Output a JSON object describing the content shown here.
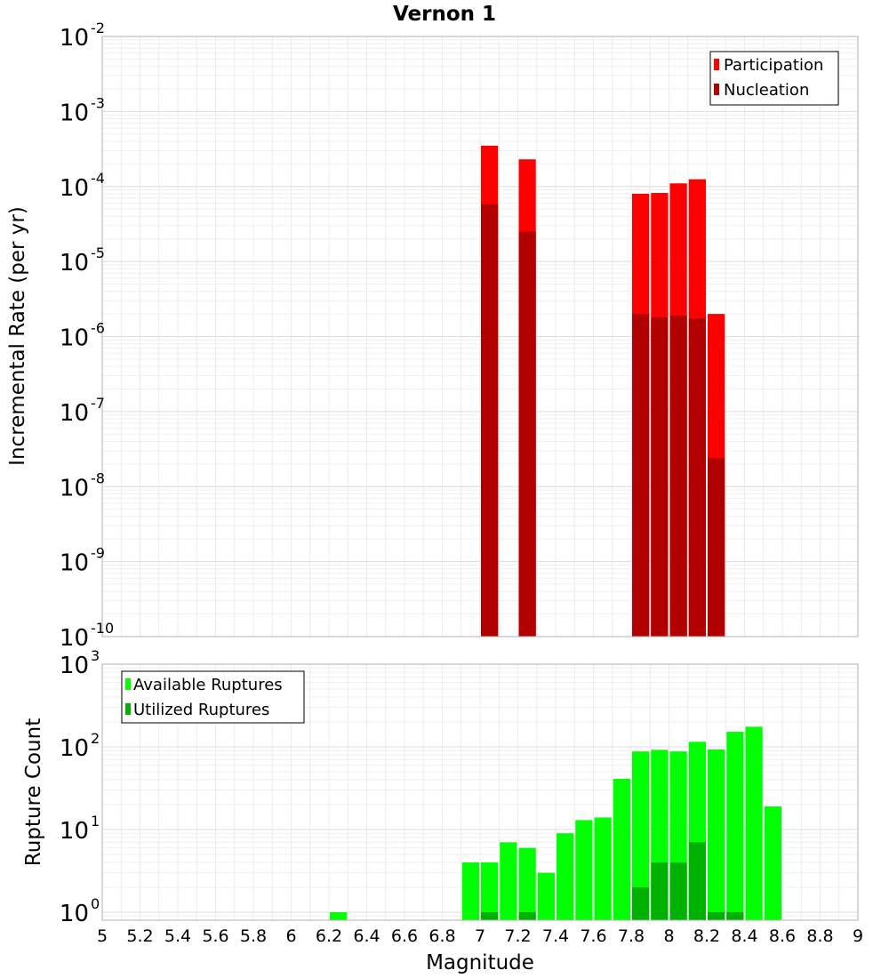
{
  "chart_data": [
    {
      "type": "bar",
      "title": "Vernon 1",
      "ylabel": "Incremental Rate (per yr)",
      "yscale": "log",
      "ylim": [
        1e-10,
        0.01
      ],
      "xlim": [
        5,
        9
      ],
      "bin_width": 0.1,
      "grid": true,
      "legend_position": "top-right",
      "x": [
        7.05,
        7.25,
        7.85,
        7.95,
        8.05,
        8.15,
        8.25
      ],
      "series": [
        {
          "name": "Participation",
          "color": "#ff0000",
          "values": [
            0.00035,
            0.00023,
            8e-05,
            8.2e-05,
            0.00011,
            0.000125,
            2e-06
          ]
        },
        {
          "name": "Nucleation",
          "color": "#b20000",
          "values": [
            5.8e-05,
            2.5e-05,
            2e-06,
            1.8e-06,
            1.9e-06,
            1.75e-06,
            2.4e-08
          ]
        }
      ]
    },
    {
      "type": "bar",
      "xlabel": "Magnitude",
      "ylabel": "Rupture Count",
      "yscale": "log",
      "ylim": [
        0.8,
        1000
      ],
      "xlim": [
        5,
        9
      ],
      "bin_width": 0.1,
      "grid": true,
      "legend_position": "top-left",
      "x": [
        6.25,
        6.95,
        7.05,
        7.15,
        7.25,
        7.35,
        7.45,
        7.55,
        7.65,
        7.75,
        7.85,
        7.95,
        8.05,
        8.15,
        8.25,
        8.35,
        8.45,
        8.55
      ],
      "series": [
        {
          "name": "Available Ruptures",
          "color": "#00ff00",
          "values": [
            1,
            4,
            4,
            7,
            6,
            3,
            9,
            13,
            14,
            41,
            88,
            92,
            88,
            115,
            93,
            152,
            175,
            19
          ]
        },
        {
          "name": "Utilized Ruptures",
          "color": "#00b200",
          "values": [
            0,
            0,
            1,
            0,
            1,
            0,
            0,
            0,
            0,
            0,
            2,
            4,
            4,
            7,
            1,
            1,
            0,
            0
          ]
        }
      ]
    }
  ],
  "x_ticks": [
    "5",
    "5.2",
    "5.4",
    "5.6",
    "5.8",
    "6",
    "6.2",
    "6.4",
    "6.6",
    "6.8",
    "7",
    "7.2",
    "7.4",
    "7.6",
    "7.8",
    "8",
    "8.2",
    "8.4",
    "8.6",
    "8.8",
    "9"
  ],
  "top_y_ticks": [
    {
      "base": "10",
      "exp": "-10"
    },
    {
      "base": "10",
      "exp": "-9"
    },
    {
      "base": "10",
      "exp": "-8"
    },
    {
      "base": "10",
      "exp": "-7"
    },
    {
      "base": "10",
      "exp": "-6"
    },
    {
      "base": "10",
      "exp": "-5"
    },
    {
      "base": "10",
      "exp": "-4"
    },
    {
      "base": "10",
      "exp": "-3"
    },
    {
      "base": "10",
      "exp": "-2"
    }
  ],
  "bottom_y_ticks": [
    {
      "base": "10",
      "exp": "0"
    },
    {
      "base": "10",
      "exp": "1"
    },
    {
      "base": "10",
      "exp": "2"
    },
    {
      "base": "10",
      "exp": "3"
    }
  ]
}
